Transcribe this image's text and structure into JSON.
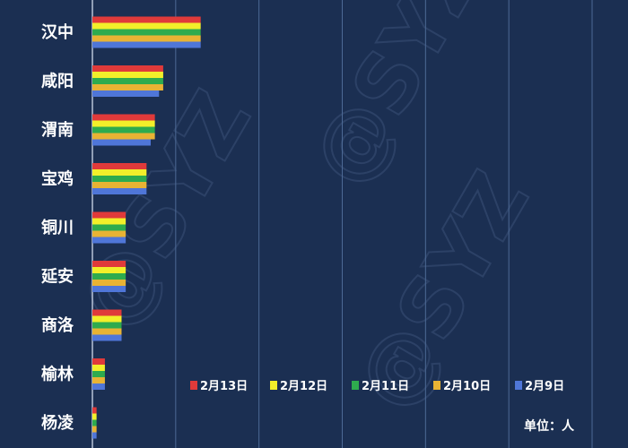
{
  "watermark": "@SYZ",
  "colors": {
    "background": "#1b2f52",
    "grid": "#4d6a96",
    "axis": "#b8c4d8",
    "label": "#ffffff"
  },
  "chart_data": {
    "type": "bar",
    "orientation": "horizontal",
    "categories": [
      "汉中",
      "咸阳",
      "渭南",
      "宝鸡",
      "铜川",
      "延安",
      "商洛",
      "榆林",
      "杨凌"
    ],
    "series": [
      {
        "name": "2月13日",
        "color": "#e03a3a",
        "values": [
          26,
          17,
          15,
          13,
          8,
          8,
          7,
          3,
          1
        ]
      },
      {
        "name": "2月12日",
        "color": "#f2ef2a",
        "values": [
          26,
          17,
          15,
          13,
          8,
          8,
          7,
          3,
          1
        ]
      },
      {
        "name": "2月11日",
        "color": "#2eab4e",
        "values": [
          26,
          17,
          15,
          13,
          8,
          8,
          7,
          3,
          1
        ]
      },
      {
        "name": "2月10日",
        "color": "#e8b334",
        "values": [
          26,
          17,
          15,
          13,
          8,
          8,
          7,
          3,
          1
        ]
      },
      {
        "name": "2月9日",
        "color": "#4f76d8",
        "values": [
          26,
          16,
          14,
          13,
          8,
          8,
          7,
          3,
          1
        ]
      }
    ],
    "unit_label": "单位：人",
    "xlim": [
      0,
      120
    ],
    "grid": true,
    "legend_position": "bottom-right"
  }
}
